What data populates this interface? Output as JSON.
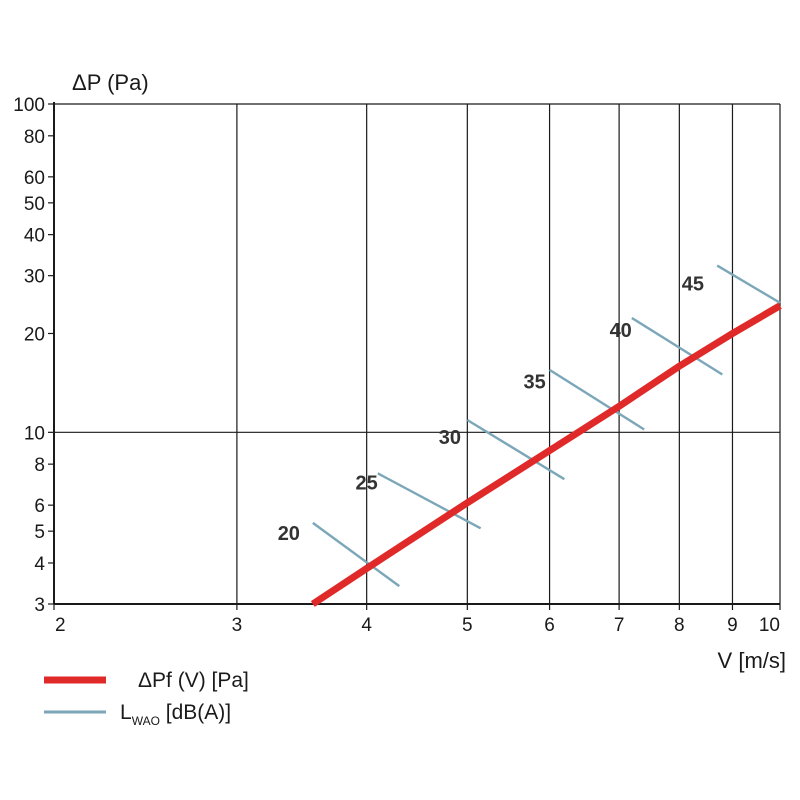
{
  "chart_data": {
    "type": "line",
    "x_scale": "log",
    "y_scale": "log",
    "xlim": [
      2,
      10
    ],
    "ylim": [
      3,
      100
    ],
    "x_ticks": [
      2,
      3,
      4,
      5,
      6,
      7,
      8,
      9,
      10
    ],
    "y_ticks": [
      3,
      4,
      5,
      6,
      8,
      10,
      20,
      30,
      40,
      50,
      60,
      80,
      100
    ],
    "x_gridlines": [
      3,
      4,
      5,
      6,
      7,
      8,
      9,
      10
    ],
    "y_gridlines": [
      10,
      100
    ],
    "ylabel": "ΔP (Pa)",
    "xlabel": "V [m/s]",
    "grid": true,
    "colors": {
      "pressure": "#e02a2a",
      "noise": "#7ba7b8",
      "grid": "#1a1a1a"
    },
    "series": [
      {
        "name": "ΔPf (V) [Pa]",
        "x": [
          3.55,
          4.0,
          5.0,
          6.0,
          7.0,
          8.0,
          9.0,
          10.0
        ],
        "y": [
          3.0,
          3.85,
          6.1,
          8.8,
          12.0,
          15.9,
          20.0,
          24.3
        ]
      }
    ],
    "noise_lines": [
      {
        "label": "20",
        "x": [
          3.55,
          4.3
        ],
        "y": [
          5.3,
          3.4
        ],
        "label_x": 3.45,
        "label_y": 4.7
      },
      {
        "label": "25",
        "x": [
          4.1,
          5.15
        ],
        "y": [
          7.5,
          5.1
        ],
        "label_x": 4.1,
        "label_y": 6.7
      },
      {
        "label": "30",
        "x": [
          5.0,
          6.2
        ],
        "y": [
          10.9,
          7.2
        ],
        "label_x": 4.93,
        "label_y": 9.2
      },
      {
        "label": "35",
        "x": [
          6.0,
          7.4
        ],
        "y": [
          15.5,
          10.2
        ],
        "label_x": 5.95,
        "label_y": 13.6
      },
      {
        "label": "40",
        "x": [
          7.2,
          8.8
        ],
        "y": [
          22.3,
          15.0
        ],
        "label_x": 7.2,
        "label_y": 19.5
      },
      {
        "label": "45",
        "x": [
          8.7,
          10.0
        ],
        "y": [
          32.2,
          24.8
        ],
        "label_x": 8.45,
        "label_y": 27.0
      }
    ],
    "legend": {
      "placement": "bottom-left",
      "entries": [
        {
          "label": "ΔPf (V) [Pa]",
          "series": "pressure"
        },
        {
          "label_main": "L",
          "label_sub": "WAO",
          "label_rest": " [dB(A)]",
          "series": "noise"
        }
      ]
    }
  }
}
